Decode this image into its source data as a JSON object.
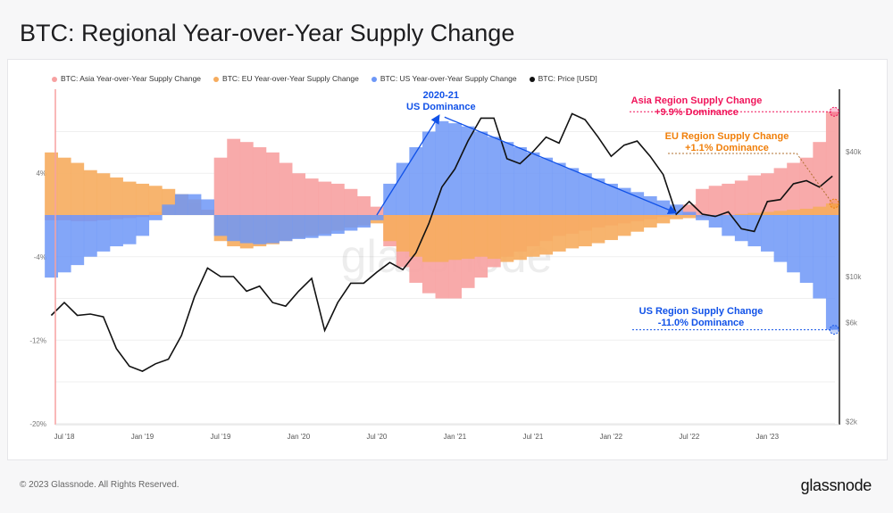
{
  "title": "BTC: Regional Year-over-Year Supply Change",
  "footer": {
    "copyright": "© 2023 Glassnode. All Rights Reserved.",
    "logo": "glassnode",
    "watermark": "glassnode"
  },
  "colors": {
    "asia": "#f7a1a1",
    "eu": "#f6ac5e",
    "us": "#6d97f7",
    "price": "#111111",
    "asia_annot": "#f0145a",
    "eu_annot": "#f07f0a",
    "us_annot": "#1152e8"
  },
  "chart_data": {
    "type": "bar",
    "title": "BTC: Regional Year-over-Year Supply Change",
    "legend_placement": "top-left",
    "legend": [
      "BTC: Asia Year-over-Year Supply Change",
      "BTC: EU Year-over-Year Supply Change",
      "BTC: US Year-over-Year Supply Change",
      "BTC: Price [USD]"
    ],
    "x_ticks": [
      "Jul '18",
      "Jan '19",
      "Jul '19",
      "Jan '20",
      "Jul '20",
      "Jan '21",
      "Jul '21",
      "Jan '22",
      "Jul '22",
      "Jan '23"
    ],
    "y_left_ticks": [
      "4%",
      "-4%",
      "-12%",
      "-20%"
    ],
    "y_right_ticks": [
      "$40k",
      "$10k",
      "$6k",
      "$2k"
    ],
    "y_left_range": [
      -20,
      8
    ],
    "y_right_scale": "log",
    "y_right_range": [
      2000,
      80000
    ],
    "grid": true,
    "x": [
      "2018-06",
      "2018-07",
      "2018-08",
      "2018-09",
      "2018-10",
      "2018-11",
      "2018-12",
      "2019-01",
      "2019-02",
      "2019-03",
      "2019-04",
      "2019-05",
      "2019-06",
      "2019-07",
      "2019-08",
      "2019-09",
      "2019-10",
      "2019-11",
      "2019-12",
      "2020-01",
      "2020-02",
      "2020-03",
      "2020-04",
      "2020-05",
      "2020-06",
      "2020-07",
      "2020-08",
      "2020-09",
      "2020-10",
      "2020-11",
      "2020-12",
      "2021-01",
      "2021-02",
      "2021-03",
      "2021-04",
      "2021-05",
      "2021-06",
      "2021-07",
      "2021-08",
      "2021-09",
      "2021-10",
      "2021-11",
      "2021-12",
      "2022-01",
      "2022-02",
      "2022-03",
      "2022-04",
      "2022-05",
      "2022-06",
      "2022-07",
      "2022-08",
      "2022-09",
      "2022-10",
      "2022-11",
      "2022-12",
      "2023-01",
      "2023-02",
      "2023-03",
      "2023-04",
      "2023-05",
      "2023-06"
    ],
    "series": [
      {
        "name": "BTC: Asia Year-over-Year Supply Change",
        "type": "bar",
        "values": [
          -0.5,
          -0.5,
          -0.6,
          -0.6,
          -0.5,
          -0.4,
          -0.3,
          -0.2,
          0.3,
          0.8,
          1.5,
          1.2,
          0.5,
          5.5,
          7.3,
          7.0,
          6.5,
          6.0,
          5.0,
          4.0,
          3.5,
          3.2,
          3.0,
          2.5,
          1.8,
          0.8,
          -3,
          -5,
          -6.5,
          -7.5,
          -8,
          -8,
          -7,
          -6,
          -5,
          -4,
          -3.5,
          -3,
          -2.5,
          -2,
          -1.8,
          -1.5,
          -1.2,
          -1,
          -0.8,
          -0.6,
          -0.4,
          -0.2,
          0,
          1.0,
          2.5,
          2.8,
          3.0,
          3.3,
          3.8,
          4.0,
          4.5,
          5.0,
          5.5,
          7.0,
          9.9
        ]
      },
      {
        "name": "BTC: EU Year-over-Year Supply Change",
        "type": "bar",
        "values": [
          6.0,
          5.5,
          5.0,
          4.3,
          4.0,
          3.6,
          3.2,
          3.0,
          2.8,
          2.5,
          2.0,
          1.5,
          0.5,
          -2.5,
          -3.0,
          -3.2,
          -3.0,
          -2.8,
          -2.5,
          -2.2,
          -2.0,
          -1.8,
          -1.5,
          -1.2,
          -1.0,
          -0.8,
          -2.5,
          -3.5,
          -4.0,
          -4.5,
          -4.5,
          -4.3,
          -4.2,
          -4.0,
          -4.2,
          -4.5,
          -4.3,
          -4.0,
          -3.8,
          -3.5,
          -3.2,
          -3.0,
          -2.7,
          -2.4,
          -2.0,
          -1.6,
          -1.2,
          -0.8,
          -0.4,
          -0.3,
          -0.2,
          -0.1,
          0,
          0.1,
          0.2,
          0.3,
          0.4,
          0.5,
          0.6,
          0.8,
          1.1
        ]
      },
      {
        "name": "BTC: US Year-over-Year Supply Change",
        "type": "bar",
        "values": [
          -6.0,
          -5.5,
          -4.8,
          -4.0,
          -3.5,
          -3.0,
          -2.8,
          -2.0,
          -0.5,
          1.0,
          2.0,
          2.0,
          1.5,
          -2.0,
          -2.5,
          -2.7,
          -2.8,
          -2.7,
          -2.5,
          -2.3,
          -2.2,
          -2.0,
          -1.8,
          -1.5,
          -1.2,
          -0.5,
          3.0,
          5.0,
          6.5,
          8.0,
          9.0,
          8.8,
          8.5,
          8.0,
          7.5,
          7.0,
          6.5,
          6.0,
          5.5,
          5.0,
          4.5,
          4.0,
          3.5,
          3.0,
          2.6,
          2.2,
          1.8,
          1.4,
          1.0,
          0.3,
          -0.5,
          -1.2,
          -2.0,
          -2.5,
          -3.0,
          -3.5,
          -4.5,
          -5.5,
          -6.5,
          -8.0,
          -11.0
        ]
      },
      {
        "name": "BTC: Price [USD]",
        "type": "line",
        "axis": "right",
        "values": [
          6500,
          7500,
          6500,
          6600,
          6400,
          4500,
          3700,
          3500,
          3800,
          4000,
          5200,
          8000,
          11000,
          10000,
          10000,
          8500,
          9000,
          7500,
          7200,
          8500,
          9800,
          5500,
          7500,
          9300,
          9300,
          10500,
          11700,
          10800,
          13000,
          18000,
          27000,
          33000,
          45000,
          58000,
          58000,
          37000,
          35000,
          40000,
          47000,
          44000,
          61000,
          57000,
          47000,
          38000,
          43000,
          45000,
          38000,
          31000,
          20000,
          23000,
          20000,
          19500,
          20500,
          17000,
          16500,
          23000,
          23500,
          28000,
          29000,
          27000,
          30500
        ]
      }
    ],
    "annotations": [
      {
        "text": [
          "2020-21",
          "US Dominance"
        ],
        "color": "#1152e8"
      },
      {
        "text": [
          "Asia Region Supply Change",
          "+9.9% Dominance"
        ],
        "value": 9.9,
        "color": "#f0145a"
      },
      {
        "text": [
          "EU Region Supply Change",
          "+1.1% Dominance"
        ],
        "value": 1.1,
        "color": "#f07f0a"
      },
      {
        "text": [
          "US Region Supply Change",
          "-11.0% Dominance"
        ],
        "value": -11.0,
        "color": "#1152e8"
      }
    ]
  }
}
